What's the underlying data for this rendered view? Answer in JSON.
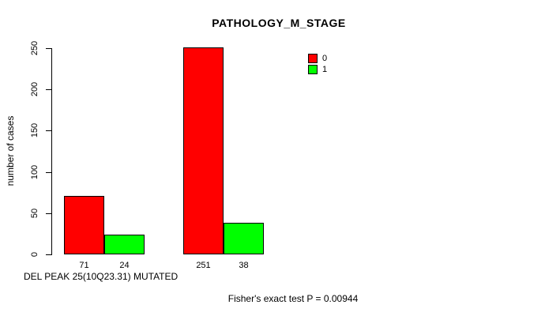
{
  "chart_data": {
    "type": "bar",
    "title": "PATHOLOGY_M_STAGE",
    "ylabel": "number of cases",
    "xlabel": "DEL PEAK 25(10Q23.31) MUTATED",
    "annotation": "Fisher's exact test P = 0.00944",
    "ylim": [
      0,
      250
    ],
    "yticks": [
      0,
      50,
      100,
      150,
      200,
      250
    ],
    "grid": false,
    "legend_position": "top-right-inside",
    "series": [
      {
        "name": "0",
        "color": "#ff0000",
        "values": [
          71,
          251
        ]
      },
      {
        "name": "1",
        "color": "#00ff00",
        "values": [
          24,
          38
        ]
      }
    ],
    "bar_value_labels": [
      [
        "71",
        "24"
      ],
      [
        "251",
        "38"
      ]
    ],
    "colors": {
      "background": "#ffffff",
      "axis": "#000000",
      "text": "#000000"
    }
  }
}
